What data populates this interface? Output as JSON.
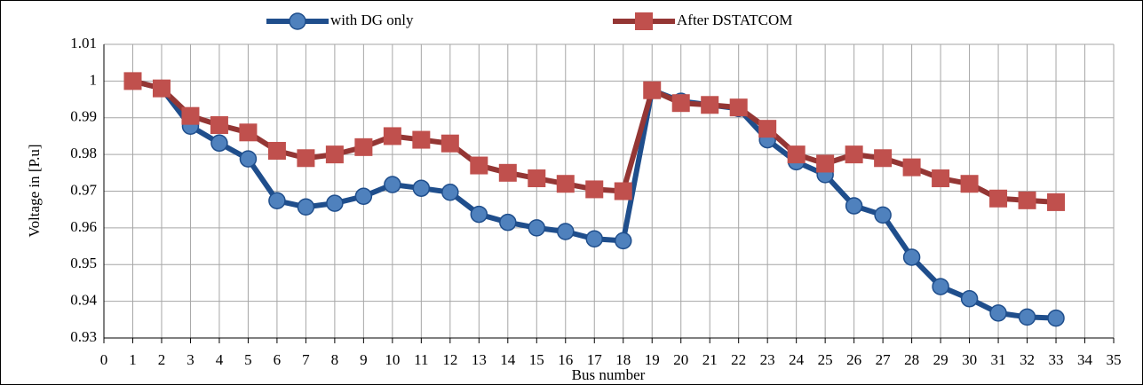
{
  "chart_data": {
    "type": "line",
    "xlabel": "Bus number",
    "ylabel": "Voltage in [P.u]",
    "x": [
      1,
      2,
      3,
      4,
      5,
      6,
      7,
      8,
      9,
      10,
      11,
      12,
      13,
      14,
      15,
      16,
      17,
      18,
      19,
      20,
      21,
      22,
      23,
      24,
      25,
      26,
      27,
      28,
      29,
      30,
      31,
      32,
      33
    ],
    "series": [
      {
        "name": "with DG only",
        "color": "#1f4e8c",
        "marker_color": "#4f81bd",
        "marker": "circle",
        "values": [
          1.0,
          0.998,
          0.9877,
          0.9831,
          0.9788,
          0.9674,
          0.9657,
          0.9667,
          0.9686,
          0.9718,
          0.9708,
          0.9697,
          0.9637,
          0.9615,
          0.96,
          0.959,
          0.957,
          0.9565,
          0.9975,
          0.9945,
          0.9935,
          0.9925,
          0.984,
          0.978,
          0.9745,
          0.966,
          0.9635,
          0.952,
          0.944,
          0.9407,
          0.9368,
          0.9357,
          0.9354
        ]
      },
      {
        "name": "After DSTATCOM",
        "color": "#943634",
        "marker_color": "#c0504d",
        "marker": "square",
        "values": [
          1.0,
          0.998,
          0.9905,
          0.988,
          0.986,
          0.981,
          0.979,
          0.98,
          0.982,
          0.985,
          0.984,
          0.983,
          0.977,
          0.975,
          0.9735,
          0.972,
          0.9705,
          0.97,
          0.9975,
          0.994,
          0.9935,
          0.9928,
          0.987,
          0.98,
          0.9775,
          0.98,
          0.979,
          0.9765,
          0.9735,
          0.972,
          0.968,
          0.9675,
          0.967
        ]
      }
    ],
    "xlim": [
      0,
      35
    ],
    "xticks": [
      0,
      1,
      2,
      3,
      4,
      5,
      6,
      7,
      8,
      9,
      10,
      11,
      12,
      13,
      14,
      15,
      16,
      17,
      18,
      19,
      20,
      21,
      22,
      23,
      24,
      25,
      26,
      27,
      28,
      29,
      30,
      31,
      32,
      33,
      34,
      35
    ],
    "ylim": [
      0.93,
      1.01
    ],
    "yticks": [
      0.93,
      0.94,
      0.95,
      0.96,
      0.97,
      0.98,
      0.99,
      1,
      1.01
    ],
    "grid": true,
    "legend": "top"
  }
}
